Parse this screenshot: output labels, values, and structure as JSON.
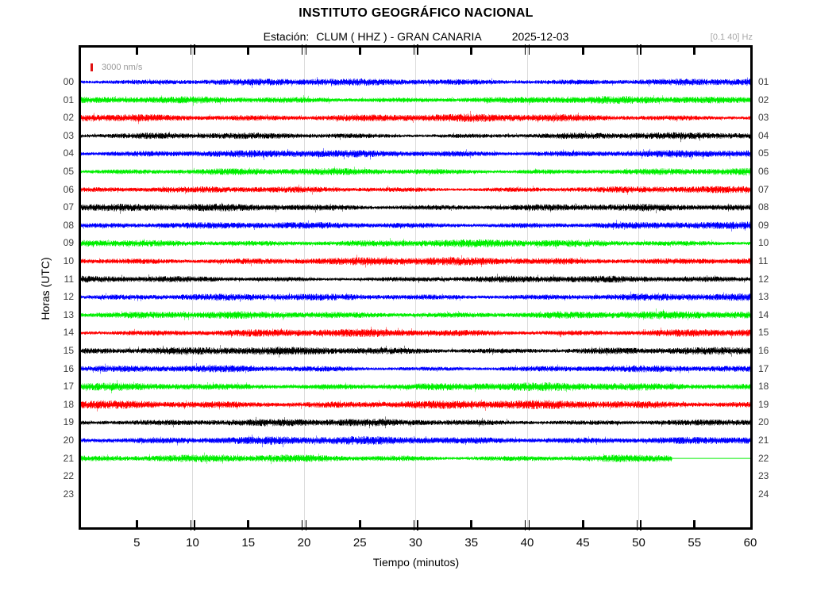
{
  "header": {
    "title": "INSTITUTO GEOGRÁFICO NACIONAL",
    "station_label": "Estación:",
    "station_value": "CLUM ( HHZ ) - GRAN CANARIA",
    "date": "2025-12-03",
    "filter_band": "[0.1 40] Hz"
  },
  "chart_data": {
    "type": "line",
    "variant": "helicorder-seismogram",
    "title": "INSTITUTO GEOGRÁFICO NACIONAL",
    "station": "CLUM",
    "channel": "HHZ",
    "location": "GRAN CANARIA",
    "date": "2025-12-03",
    "filter_band_hz": [
      0.1,
      40
    ],
    "scale_label": "3000 nm/s",
    "xlabel": "Tiempo (minutos)",
    "ylabel": "Horas (UTC)",
    "xlim": [
      0,
      60
    ],
    "x_ticks": [
      5,
      10,
      15,
      20,
      25,
      30,
      35,
      40,
      45,
      50,
      55,
      60
    ],
    "gridline_minutes": [
      10,
      20,
      30,
      40,
      50
    ],
    "grid": true,
    "legend_position": "top-left-inside",
    "trace_color_cycle": [
      "#0000ff",
      "#00ee00",
      "#ff0000",
      "#000000"
    ],
    "rows": [
      {
        "left_label": "00",
        "right_label": "01",
        "color": "#0000ff",
        "has_data": true,
        "start_min": 0,
        "end_min": 60,
        "amplitude": 0.95
      },
      {
        "left_label": "01",
        "right_label": "02",
        "color": "#00ee00",
        "has_data": true,
        "start_min": 0,
        "end_min": 60,
        "amplitude": 1.0
      },
      {
        "left_label": "02",
        "right_label": "03",
        "color": "#ff0000",
        "has_data": true,
        "start_min": 0,
        "end_min": 60,
        "amplitude": 1.1
      },
      {
        "left_label": "03",
        "right_label": "04",
        "color": "#000000",
        "has_data": true,
        "start_min": 0,
        "end_min": 60,
        "amplitude": 0.95
      },
      {
        "left_label": "04",
        "right_label": "05",
        "color": "#0000ff",
        "has_data": true,
        "start_min": 0,
        "end_min": 60,
        "amplitude": 1.0
      },
      {
        "left_label": "05",
        "right_label": "06",
        "color": "#00ee00",
        "has_data": true,
        "start_min": 0,
        "end_min": 60,
        "amplitude": 1.05
      },
      {
        "left_label": "06",
        "right_label": "07",
        "color": "#ff0000",
        "has_data": true,
        "start_min": 0,
        "end_min": 60,
        "amplitude": 0.95
      },
      {
        "left_label": "07",
        "right_label": "08",
        "color": "#000000",
        "has_data": true,
        "start_min": 0,
        "end_min": 60,
        "amplitude": 1.0
      },
      {
        "left_label": "08",
        "right_label": "09",
        "color": "#0000ff",
        "has_data": true,
        "start_min": 0,
        "end_min": 60,
        "amplitude": 0.95
      },
      {
        "left_label": "09",
        "right_label": "10",
        "color": "#00ee00",
        "has_data": true,
        "start_min": 0,
        "end_min": 60,
        "amplitude": 1.0
      },
      {
        "left_label": "10",
        "right_label": "11",
        "color": "#ff0000",
        "has_data": true,
        "start_min": 0,
        "end_min": 60,
        "amplitude": 1.1
      },
      {
        "left_label": "11",
        "right_label": "12",
        "color": "#000000",
        "has_data": true,
        "start_min": 0,
        "end_min": 60,
        "amplitude": 1.0
      },
      {
        "left_label": "12",
        "right_label": "13",
        "color": "#0000ff",
        "has_data": true,
        "start_min": 0,
        "end_min": 60,
        "amplitude": 0.95
      },
      {
        "left_label": "13",
        "right_label": "14",
        "color": "#00ee00",
        "has_data": true,
        "start_min": 0,
        "end_min": 60,
        "amplitude": 1.05
      },
      {
        "left_label": "14",
        "right_label": "15",
        "color": "#ff0000",
        "has_data": true,
        "start_min": 0,
        "end_min": 60,
        "amplitude": 1.2
      },
      {
        "left_label": "15",
        "right_label": "16",
        "color": "#000000",
        "has_data": true,
        "start_min": 0,
        "end_min": 60,
        "amplitude": 1.1
      },
      {
        "left_label": "16",
        "right_label": "17",
        "color": "#0000ff",
        "has_data": true,
        "start_min": 0,
        "end_min": 60,
        "amplitude": 1.0
      },
      {
        "left_label": "17",
        "right_label": "18",
        "color": "#00ee00",
        "has_data": true,
        "start_min": 0,
        "end_min": 60,
        "amplitude": 1.1
      },
      {
        "left_label": "18",
        "right_label": "19",
        "color": "#ff0000",
        "has_data": true,
        "start_min": 0,
        "end_min": 60,
        "amplitude": 1.15
      },
      {
        "left_label": "19",
        "right_label": "20",
        "color": "#000000",
        "has_data": true,
        "start_min": 0,
        "end_min": 60,
        "amplitude": 1.0
      },
      {
        "left_label": "20",
        "right_label": "21",
        "color": "#0000ff",
        "has_data": true,
        "start_min": 0,
        "end_min": 60,
        "amplitude": 1.1
      },
      {
        "left_label": "21",
        "right_label": "22",
        "color": "#00ee00",
        "has_data": true,
        "start_min": 0,
        "end_min": 60,
        "noise_end_min": 53,
        "flat_after": true,
        "amplitude": 1.15
      },
      {
        "left_label": "22",
        "right_label": "23",
        "has_data": false
      },
      {
        "left_label": "23",
        "right_label": "24",
        "has_data": false
      }
    ]
  }
}
